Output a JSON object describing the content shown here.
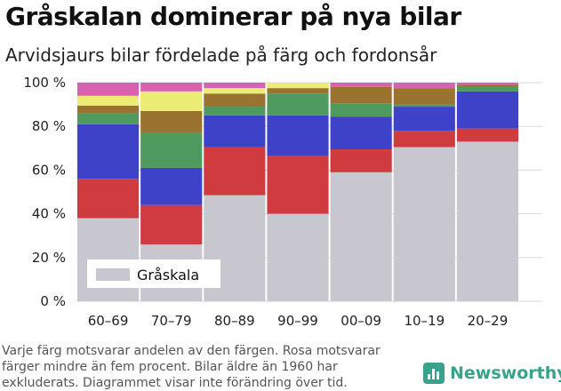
{
  "title": "Gråskalan dominerar på nya bilar",
  "subtitle": "Arvidsjaurs bilar fördelade på färg och fordonsår",
  "footnote": [
    "Varje färg motsvarar andelen av den färgen. Rosa motsvarar",
    "färger mindre än fem procent. Bilar äldre än 1960 har",
    "exkluderats. Diagrammet visar inte förändring över tid."
  ],
  "brand": {
    "name": "Newsworthy",
    "icon": "bar-chart-icon",
    "color": "#3aa28b"
  },
  "chart_data": {
    "type": "bar",
    "stacked": true,
    "percent": true,
    "categories": [
      "60–69",
      "70–79",
      "80–89",
      "90–99",
      "00–09",
      "10–19",
      "20–29"
    ],
    "ylim": [
      0,
      100
    ],
    "yticks": [
      "0 %",
      "20 %",
      "40 %",
      "60 %",
      "80 %",
      "100 %"
    ],
    "grid": true,
    "legend": {
      "position": "bottom-left",
      "entries": [
        "Gråskala"
      ]
    },
    "series": [
      {
        "name": "Gråskala",
        "color": "#c8c7cf",
        "values": [
          38,
          26,
          48.5,
          40,
          59,
          70.5,
          73
        ]
      },
      {
        "color": "#cf3b3f",
        "values": [
          18,
          18,
          22,
          26.5,
          10.5,
          7.5,
          6
        ]
      },
      {
        "color": "#3e42c8",
        "values": [
          25,
          17,
          14.5,
          18.5,
          15,
          11,
          17
        ]
      },
      {
        "color": "#4f9a5e",
        "values": [
          5,
          16,
          4,
          10,
          6,
          1,
          2
        ]
      },
      {
        "color": "#9b7331",
        "values": [
          3.5,
          10,
          6,
          2.5,
          7.5,
          7.5,
          1
        ]
      },
      {
        "color": "#ecec74",
        "values": [
          4.5,
          9,
          2.5,
          2.5,
          0,
          0,
          0
        ]
      },
      {
        "color": "#d961b0",
        "values": [
          6,
          4,
          2.5,
          0,
          2,
          2.5,
          1
        ]
      }
    ]
  }
}
